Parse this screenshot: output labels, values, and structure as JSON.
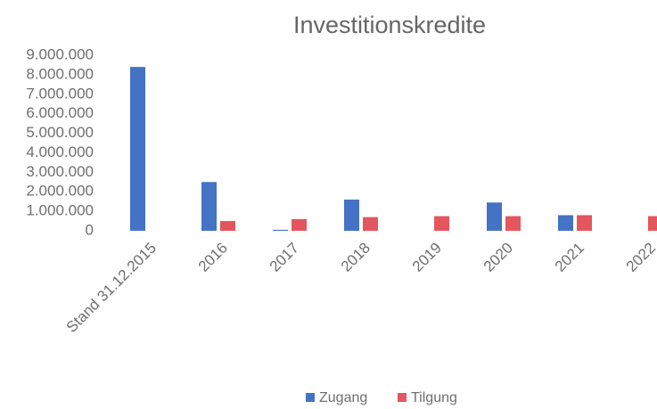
{
  "chart_data": {
    "type": "bar",
    "title": "Investitionskredite",
    "categories": [
      "Stand 31.12.2015",
      "2016",
      "2017",
      "2018",
      "2019",
      "2020",
      "2021",
      "2022"
    ],
    "series": [
      {
        "name": "Zugang",
        "color": "#4472c4",
        "values": [
          8400000,
          2500000,
          50000,
          1600000,
          null,
          1450000,
          800000,
          null
        ]
      },
      {
        "name": "Tilgung",
        "color": "#e4565e",
        "values": [
          null,
          500000,
          600000,
          700000,
          750000,
          750000,
          800000,
          750000
        ]
      }
    ],
    "ylim": [
      0,
      9000000
    ],
    "yticks": [
      0,
      {
        "value": 1000000,
        "label": "1.000.000"
      },
      {
        "value": 2000000,
        "label": "2.000.000"
      },
      {
        "value": 3000000,
        "label": "3.000.000"
      },
      {
        "value": 4000000,
        "label": "4.000.000"
      },
      {
        "value": 5000000,
        "label": "5.000.000"
      },
      {
        "value": 6000000,
        "label": "6.000.000"
      },
      {
        "value": 7000000,
        "label": "7.000.000"
      },
      {
        "value": 8000000,
        "label": "8.000.000"
      },
      {
        "value": 9000000,
        "label": "9.000.000"
      }
    ],
    "grid": false,
    "legend": "bottom"
  }
}
